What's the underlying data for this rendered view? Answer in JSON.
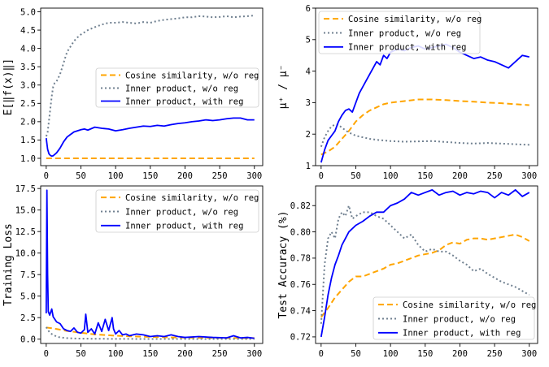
{
  "colors": {
    "cosine": "#FFA500",
    "inner": "#708090",
    "inner_reg": "#0000FF"
  },
  "chart_data": [
    {
      "type": "line",
      "panel": "top-left",
      "xlabel": "",
      "ylabel": "E[‖f(x)‖]",
      "xlim": [
        -8,
        312
      ],
      "ylim": [
        0.8,
        5.1
      ],
      "xticks": [
        0,
        50,
        100,
        150,
        200,
        250,
        300
      ],
      "yticks": [
        1.0,
        1.5,
        2.0,
        2.5,
        3.0,
        3.5,
        4.0,
        4.5,
        5.0
      ],
      "legend_position": "center-right",
      "series": [
        {
          "name": "Cosine similarity, w/o reg",
          "style": "dashed",
          "color": "#FFA500",
          "x": [
            0,
            300
          ],
          "y": [
            1.0,
            1.0
          ]
        },
        {
          "name": "Inner product, w/o reg",
          "style": "dotted",
          "color": "#708090",
          "x": [
            0,
            2,
            5,
            8,
            10,
            12,
            15,
            20,
            25,
            30,
            35,
            40,
            45,
            50,
            60,
            70,
            80,
            90,
            100,
            110,
            120,
            130,
            140,
            150,
            160,
            170,
            180,
            190,
            200,
            210,
            220,
            230,
            240,
            250,
            260,
            270,
            280,
            290,
            300
          ],
          "y": [
            1.6,
            1.7,
            2.2,
            2.7,
            2.95,
            3.05,
            3.1,
            3.3,
            3.6,
            3.9,
            4.05,
            4.2,
            4.3,
            4.38,
            4.5,
            4.58,
            4.65,
            4.7,
            4.7,
            4.72,
            4.7,
            4.68,
            4.72,
            4.7,
            4.75,
            4.78,
            4.8,
            4.82,
            4.85,
            4.85,
            4.88,
            4.87,
            4.85,
            4.86,
            4.88,
            4.85,
            4.87,
            4.88,
            4.9
          ]
        },
        {
          "name": "Inner product, with reg",
          "style": "solid",
          "color": "#0000FF",
          "x": [
            0,
            2,
            4,
            6,
            8,
            10,
            12,
            15,
            20,
            25,
            30,
            35,
            40,
            45,
            50,
            55,
            60,
            70,
            80,
            90,
            100,
            110,
            120,
            130,
            140,
            150,
            160,
            170,
            180,
            190,
            200,
            210,
            220,
            230,
            240,
            250,
            260,
            270,
            280,
            290,
            300
          ],
          "y": [
            1.55,
            1.25,
            1.12,
            1.08,
            1.06,
            1.07,
            1.1,
            1.15,
            1.28,
            1.45,
            1.58,
            1.65,
            1.72,
            1.75,
            1.78,
            1.8,
            1.77,
            1.85,
            1.82,
            1.8,
            1.75,
            1.78,
            1.82,
            1.85,
            1.88,
            1.87,
            1.9,
            1.88,
            1.92,
            1.95,
            1.97,
            2.0,
            2.02,
            2.05,
            2.03,
            2.05,
            2.08,
            2.1,
            2.1,
            2.05,
            2.05
          ]
        }
      ]
    },
    {
      "type": "line",
      "panel": "top-right",
      "xlabel": "",
      "ylabel": "μ⁺ / μ⁻",
      "xlim": [
        -8,
        312
      ],
      "ylim": [
        1,
        6
      ],
      "xticks": [
        0,
        50,
        100,
        150,
        200,
        250,
        300
      ],
      "yticks": [
        1,
        2,
        3,
        4,
        5,
        6
      ],
      "legend_position": "upper-left",
      "series": [
        {
          "name": "Cosine similarity, w/o reg",
          "style": "dashed",
          "color": "#FFA500",
          "x": [
            0,
            10,
            20,
            30,
            40,
            50,
            60,
            70,
            80,
            90,
            100,
            120,
            140,
            160,
            180,
            200,
            220,
            240,
            260,
            280,
            300
          ],
          "y": [
            1.35,
            1.45,
            1.6,
            1.85,
            2.1,
            2.4,
            2.6,
            2.75,
            2.85,
            2.95,
            3.0,
            3.05,
            3.1,
            3.1,
            3.08,
            3.05,
            3.03,
            3.0,
            2.98,
            2.95,
            2.92
          ]
        },
        {
          "name": "Inner product, w/o reg",
          "style": "dotted",
          "color": "#708090",
          "x": [
            0,
            5,
            10,
            15,
            20,
            25,
            30,
            40,
            50,
            60,
            70,
            80,
            90,
            100,
            120,
            140,
            160,
            180,
            200,
            220,
            240,
            260,
            280,
            300
          ],
          "y": [
            1.6,
            1.9,
            2.1,
            2.25,
            2.3,
            2.3,
            2.2,
            2.05,
            1.95,
            1.9,
            1.85,
            1.82,
            1.8,
            1.78,
            1.76,
            1.77,
            1.78,
            1.75,
            1.72,
            1.7,
            1.72,
            1.7,
            1.68,
            1.66
          ]
        },
        {
          "name": "Inner product, with reg",
          "style": "solid",
          "color": "#0000FF",
          "x": [
            0,
            5,
            10,
            15,
            20,
            25,
            30,
            35,
            40,
            45,
            50,
            55,
            60,
            65,
            70,
            75,
            80,
            85,
            90,
            95,
            100,
            110,
            120,
            130,
            140,
            150,
            160,
            170,
            180,
            190,
            200,
            210,
            220,
            230,
            240,
            250,
            260,
            270,
            280,
            290,
            300
          ],
          "y": [
            1.1,
            1.5,
            1.8,
            1.95,
            2.1,
            2.4,
            2.6,
            2.75,
            2.8,
            2.7,
            3.0,
            3.3,
            3.5,
            3.7,
            3.9,
            4.1,
            4.3,
            4.2,
            4.5,
            4.4,
            4.6,
            4.7,
            4.65,
            4.75,
            4.8,
            4.7,
            4.75,
            4.8,
            4.85,
            4.75,
            4.6,
            4.5,
            4.4,
            4.45,
            4.35,
            4.3,
            4.2,
            4.1,
            4.3,
            4.5,
            4.45
          ]
        }
      ]
    },
    {
      "type": "line",
      "panel": "bottom-left",
      "xlabel": "",
      "ylabel": "Training Loss",
      "xlim": [
        -8,
        312
      ],
      "ylim": [
        -0.5,
        17.8
      ],
      "xticks": [
        0,
        50,
        100,
        150,
        200,
        250,
        300
      ],
      "yticks": [
        0.0,
        2.5,
        5.0,
        7.5,
        10.0,
        12.5,
        15.0,
        17.5
      ],
      "legend_position": "upper-right",
      "series": [
        {
          "name": "Cosine similarity, w/o reg",
          "style": "dashed",
          "color": "#FFA500",
          "x": [
            0,
            10,
            20,
            30,
            40,
            50,
            60,
            70,
            80,
            90,
            100,
            120,
            140,
            160,
            180,
            200,
            220,
            240,
            260,
            280,
            300
          ],
          "y": [
            1.35,
            1.25,
            1.1,
            0.95,
            0.85,
            0.75,
            0.65,
            0.55,
            0.5,
            0.45,
            0.4,
            0.33,
            0.28,
            0.24,
            0.2,
            0.18,
            0.16,
            0.15,
            0.14,
            0.13,
            0.12
          ]
        },
        {
          "name": "Inner product, w/o reg",
          "style": "dotted",
          "color": "#708090",
          "x": [
            0,
            3,
            6,
            10,
            15,
            20,
            30,
            40,
            50,
            60,
            80,
            100,
            150,
            200,
            250,
            300
          ],
          "y": [
            1.4,
            1.0,
            0.7,
            0.5,
            0.3,
            0.2,
            0.12,
            0.08,
            0.06,
            0.05,
            0.04,
            0.03,
            0.02,
            0.02,
            0.02,
            0.02
          ]
        },
        {
          "name": "Inner product, with reg",
          "style": "solid",
          "color": "#0000FF",
          "x": [
            0,
            1,
            2,
            3,
            5,
            8,
            10,
            15,
            20,
            25,
            30,
            35,
            40,
            45,
            50,
            55,
            57,
            60,
            65,
            70,
            75,
            80,
            85,
            90,
            95,
            97,
            100,
            105,
            110,
            115,
            120,
            130,
            140,
            150,
            160,
            170,
            180,
            190,
            200,
            220,
            240,
            260,
            270,
            280,
            290,
            300
          ],
          "y": [
            3.0,
            17.3,
            7.5,
            3.2,
            2.8,
            3.5,
            2.6,
            2.0,
            1.8,
            1.2,
            1.0,
            0.9,
            1.3,
            0.8,
            0.7,
            1.1,
            2.9,
            0.8,
            1.2,
            0.6,
            1.9,
            0.9,
            2.3,
            1.0,
            2.5,
            1.2,
            0.6,
            1.0,
            0.5,
            0.6,
            0.4,
            0.6,
            0.5,
            0.3,
            0.4,
            0.3,
            0.5,
            0.3,
            0.2,
            0.3,
            0.2,
            0.15,
            0.4,
            0.15,
            0.2,
            0.1
          ]
        }
      ]
    },
    {
      "type": "line",
      "panel": "bottom-right",
      "xlabel": "",
      "ylabel": "Test Accuracy (%)",
      "xlim": [
        -8,
        312
      ],
      "ylim": [
        0.715,
        0.835
      ],
      "xticks": [
        0,
        50,
        100,
        150,
        200,
        250,
        300
      ],
      "yticks": [
        0.72,
        0.74,
        0.76,
        0.78,
        0.8,
        0.82
      ],
      "legend_position": "lower-right",
      "series": [
        {
          "name": "Cosine similarity, w/o reg",
          "style": "dashed",
          "color": "#FFA500",
          "x": [
            0,
            10,
            20,
            30,
            40,
            50,
            60,
            70,
            80,
            90,
            100,
            110,
            120,
            130,
            140,
            150,
            160,
            170,
            180,
            190,
            200,
            210,
            220,
            230,
            240,
            250,
            260,
            270,
            280,
            290,
            300
          ],
          "y": [
            0.735,
            0.742,
            0.75,
            0.756,
            0.762,
            0.766,
            0.766,
            0.768,
            0.77,
            0.772,
            0.775,
            0.776,
            0.778,
            0.78,
            0.782,
            0.783,
            0.784,
            0.786,
            0.79,
            0.792,
            0.791,
            0.794,
            0.795,
            0.795,
            0.794,
            0.795,
            0.796,
            0.797,
            0.798,
            0.796,
            0.793
          ]
        },
        {
          "name": "Inner product, w/o reg",
          "style": "dotted",
          "color": "#708090",
          "x": [
            0,
            5,
            10,
            15,
            20,
            25,
            30,
            35,
            40,
            45,
            50,
            60,
            70,
            80,
            90,
            100,
            110,
            120,
            130,
            140,
            150,
            160,
            170,
            180,
            190,
            200,
            210,
            220,
            230,
            240,
            250,
            260,
            270,
            280,
            290,
            300
          ],
          "y": [
            0.73,
            0.775,
            0.795,
            0.8,
            0.795,
            0.81,
            0.815,
            0.812,
            0.82,
            0.81,
            0.812,
            0.815,
            0.815,
            0.812,
            0.81,
            0.805,
            0.8,
            0.795,
            0.798,
            0.79,
            0.785,
            0.787,
            0.785,
            0.785,
            0.782,
            0.778,
            0.775,
            0.77,
            0.772,
            0.768,
            0.765,
            0.762,
            0.76,
            0.758,
            0.755,
            0.752
          ]
        },
        {
          "name": "Inner product, with reg",
          "style": "solid",
          "color": "#0000FF",
          "x": [
            0,
            5,
            10,
            15,
            20,
            25,
            30,
            35,
            40,
            50,
            60,
            70,
            80,
            90,
            100,
            110,
            120,
            130,
            140,
            150,
            160,
            170,
            180,
            190,
            200,
            210,
            220,
            230,
            240,
            250,
            260,
            270,
            280,
            290,
            300
          ],
          "y": [
            0.72,
            0.735,
            0.752,
            0.765,
            0.775,
            0.782,
            0.79,
            0.795,
            0.8,
            0.805,
            0.808,
            0.812,
            0.815,
            0.815,
            0.82,
            0.822,
            0.825,
            0.83,
            0.828,
            0.83,
            0.832,
            0.828,
            0.83,
            0.831,
            0.828,
            0.83,
            0.829,
            0.831,
            0.83,
            0.826,
            0.83,
            0.828,
            0.832,
            0.827,
            0.83
          ]
        }
      ]
    }
  ]
}
